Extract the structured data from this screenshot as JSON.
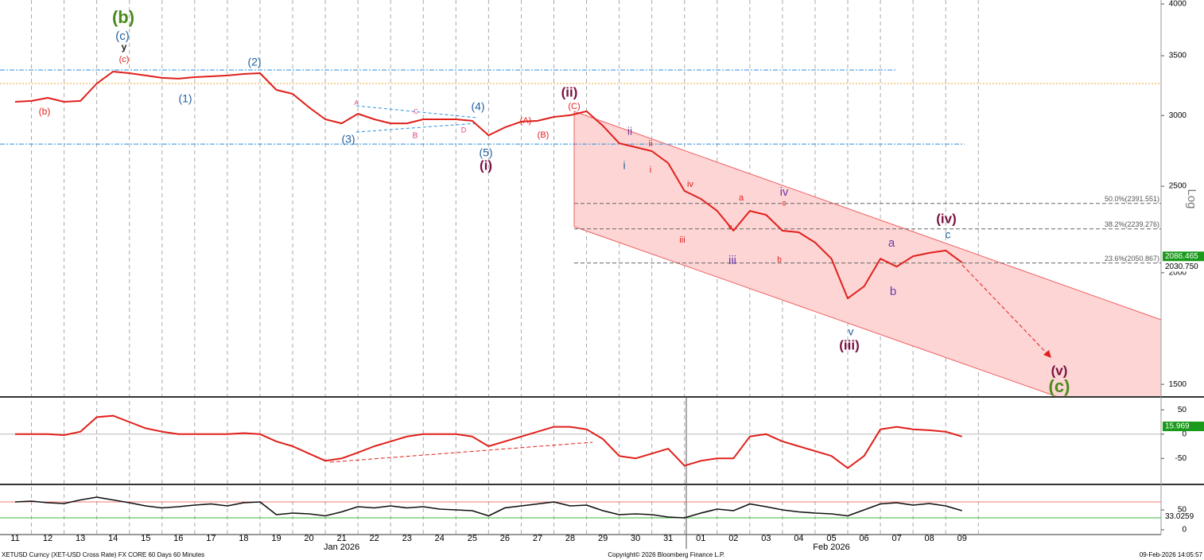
{
  "chart_data": [
    {
      "type": "line",
      "log_scale": true,
      "categories": [
        "11",
        null,
        "12",
        null,
        "13",
        null,
        "14",
        null,
        "15",
        null,
        "16",
        null,
        "17",
        null,
        "18",
        null,
        "19",
        null,
        "20",
        null,
        "21",
        null,
        "22",
        null,
        "23",
        null,
        "24",
        null,
        "25",
        null,
        "26",
        null,
        "27",
        null,
        "28",
        null,
        "29",
        null,
        "30",
        null,
        "31",
        null,
        "01",
        null,
        "02",
        null,
        "03",
        null,
        "04",
        null,
        "05",
        null,
        "06",
        null,
        "07",
        null,
        "08",
        null,
        "09",
        null
      ],
      "months": [
        "Jan 2026",
        "Feb 2026"
      ],
      "series": [
        {
          "color": "#e0201b",
          "values": [
            3108,
            3115,
            3140,
            3108,
            3115,
            3258,
            3360,
            3346,
            3326,
            3306,
            3299,
            3312,
            3319,
            3326,
            3339,
            3346,
            3205,
            3172,
            3064,
            2971,
            2940,
            3014,
            2971,
            2940,
            2940,
            2971,
            2971,
            2971,
            2959,
            2851,
            2910,
            2953,
            2959,
            2989,
            3002,
            3033,
            2922,
            2793,
            2765,
            2737,
            2654,
            2470,
            2420,
            2346,
            2229,
            2346,
            2322,
            2229,
            2220,
            2162,
            2074,
            1872,
            1931,
            2074,
            2032,
            2087,
            2105,
            2118,
            2053,
            null
          ]
        }
      ],
      "ylim": [
        1452,
        4041
      ],
      "yticks": [
        1500,
        2000,
        2500,
        3000,
        3500,
        4000
      ],
      "y_axis_label": "Log",
      "hlines": [
        {
          "value": 3374,
          "color": "#2a8fe0"
        },
        {
          "value": 2787,
          "color": "#2a8fe0"
        },
        {
          "value": 3258,
          "color": "#f0a030"
        }
      ],
      "fib_levels": [
        {
          "value": 2391.551,
          "label": "50.0%(2391.551)"
        },
        {
          "value": 2239.276,
          "label": "38.2%(2239.276)"
        },
        {
          "value": 2050.867,
          "label": "23.6%(2050.867)"
        }
      ],
      "last_values": [
        {
          "value": 2086.465,
          "color": "#1a9a1a"
        },
        {
          "value": 2030.75,
          "label": "2030.750",
          "color": "#ffffff"
        }
      ],
      "annotations": [
        "(b)",
        "(c)",
        "y",
        "(c)",
        "(b)",
        "(1)",
        "(2)",
        "(3)",
        "(4)",
        "(5)",
        "(i)",
        "(ii)",
        "(C)",
        "(A)",
        "(B)",
        "A",
        "B",
        "C",
        "D",
        "i",
        "ii",
        "i",
        "ii",
        "iii",
        "iv",
        "v",
        "iii",
        "a",
        "iv",
        "c",
        "b",
        "v",
        "(iii)",
        "a",
        "b",
        "c",
        "(iv)",
        "(v)",
        "(c)"
      ]
    },
    {
      "type": "line",
      "series": [
        {
          "color": "#e0201b",
          "values": [
            0,
            0,
            0,
            -2,
            5,
            35,
            38,
            25,
            12,
            5,
            0,
            0,
            0,
            0,
            2,
            0,
            -15,
            -25,
            -40,
            -55,
            -50,
            -38,
            -25,
            -15,
            -5,
            0,
            0,
            0,
            -5,
            -25,
            -15,
            -5,
            5,
            15,
            15,
            10,
            -10,
            -45,
            -50,
            -40,
            -30,
            -65,
            -55,
            -50,
            -50,
            -5,
            0,
            -15,
            -25,
            -35,
            -45,
            -70,
            -45,
            10,
            15,
            10,
            8,
            5,
            -5,
            null
          ]
        }
      ],
      "ylim": [
        -102,
        75
      ],
      "yticks": [
        50,
        0,
        -50
      ],
      "last_values": [
        {
          "value": 15.969,
          "color": "#1a9a1a"
        }
      ]
    },
    {
      "type": "line",
      "series": [
        {
          "color": "#111111",
          "values": [
            70,
            72,
            68,
            66,
            75,
            82,
            75,
            68,
            60,
            55,
            58,
            62,
            65,
            60,
            68,
            70,
            38,
            42,
            40,
            35,
            45,
            58,
            55,
            60,
            55,
            58,
            52,
            50,
            48,
            35,
            55,
            60,
            65,
            70,
            60,
            62,
            48,
            38,
            40,
            38,
            32,
            30,
            42,
            52,
            48,
            65,
            58,
            50,
            45,
            42,
            40,
            35,
            50,
            65,
            68,
            62,
            66,
            60,
            48,
            null
          ]
        }
      ],
      "ylim": [
        -12,
        112
      ],
      "yticks": [
        50,
        0
      ],
      "hlines": [
        {
          "value": 70,
          "color": "#f07a7a"
        },
        {
          "value": 30,
          "color": "#3cb93c"
        }
      ],
      "last_values": [
        {
          "value": 33.0259,
          "color": "#ffffff"
        }
      ]
    }
  ],
  "footer": {
    "left": "XETUSD Curncy (XET-USD Cross Rate) FX CORE 60 Days 60 Minutes",
    "center": "Copyright© 2026 Bloomberg Finance L.P.",
    "right": "09-Feb-2026 14:05:57"
  }
}
